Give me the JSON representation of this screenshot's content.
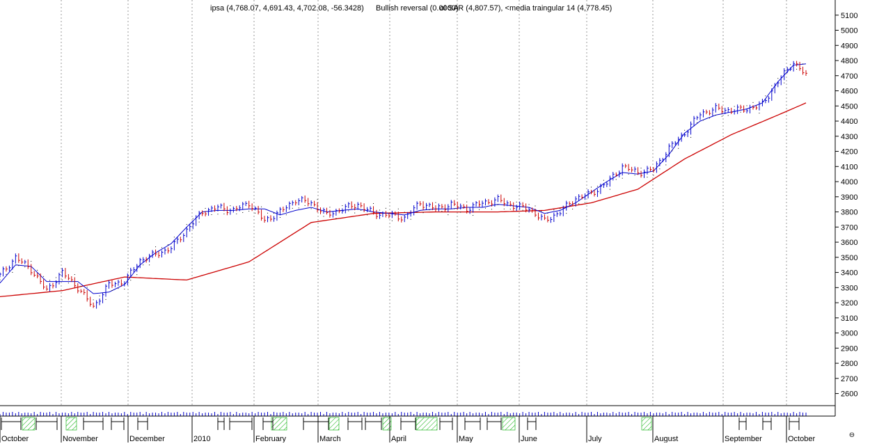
{
  "header": {
    "text_ipsa": "ipsa (4,768.07, 4,691.43, 4,702.08, -56.3428)",
    "text_overlay": "Bullish reversal (0.0000)",
    "text_sar": "ol SAR (4,807.57), <media traingular 14 (4,778.45)"
  },
  "zoom_glyph": "⊖",
  "colors": {
    "up_bar": "#0000cc",
    "down_bar": "#cc0000",
    "sma_line": "#0000cc",
    "long_ma_line": "#cc0000",
    "sar_dots": "#000000",
    "grid": "#999999",
    "volume_hatch": "#00aa00"
  },
  "chart_data": {
    "type": "line",
    "title": "ipsa",
    "ylim": [
      2520,
      5200
    ],
    "y_ticks": [
      2600,
      2700,
      2800,
      2900,
      3000,
      3100,
      3200,
      3300,
      3400,
      3500,
      3600,
      3700,
      3800,
      3900,
      4000,
      4100,
      4200,
      4300,
      4400,
      4500,
      4600,
      4700,
      4800,
      4900,
      5000,
      5100
    ],
    "x_months": [
      "October",
      "November",
      "December",
      "2010",
      "February",
      "March",
      "April",
      "May",
      "June",
      "July",
      "August",
      "September",
      "October"
    ],
    "grid": "vertical dotted at month boundaries",
    "series": [
      {
        "name": "ipsa",
        "style": "ohlc bars",
        "x": [
          0,
          5,
          10,
          15,
          20,
          25,
          30,
          35,
          40,
          45,
          50,
          55,
          60,
          65,
          70,
          75,
          80,
          85,
          90,
          95,
          100,
          105,
          110,
          115,
          120,
          125,
          130,
          135,
          140,
          145,
          150,
          155,
          160,
          165,
          170,
          175,
          180,
          185,
          190,
          195,
          200,
          205,
          210,
          215,
          220,
          225,
          230,
          235,
          240,
          245,
          250,
          255,
          259
        ],
        "values": [
          3380,
          3500,
          3420,
          3280,
          3400,
          3300,
          3170,
          3320,
          3340,
          3480,
          3520,
          3560,
          3680,
          3800,
          3830,
          3810,
          3860,
          3740,
          3800,
          3880,
          3860,
          3780,
          3820,
          3850,
          3790,
          3780,
          3760,
          3860,
          3820,
          3850,
          3820,
          3860,
          3880,
          3840,
          3820,
          3740,
          3800,
          3890,
          3920,
          3990,
          4100,
          4060,
          4080,
          4220,
          4320,
          4450,
          4480,
          4470,
          4480,
          4510,
          4660,
          4790,
          4702
        ]
      },
      {
        "name": "media traingular 14",
        "style": "line",
        "x": [
          0,
          5,
          10,
          15,
          20,
          25,
          30,
          35,
          40,
          45,
          50,
          55,
          60,
          65,
          70,
          75,
          80,
          85,
          90,
          95,
          100,
          105,
          110,
          115,
          120,
          125,
          130,
          135,
          140,
          145,
          150,
          155,
          160,
          165,
          170,
          175,
          180,
          185,
          190,
          195,
          200,
          205,
          210,
          215,
          220,
          225,
          230,
          235,
          240,
          245,
          250,
          255,
          259
        ],
        "values": [
          3330,
          3450,
          3440,
          3340,
          3340,
          3340,
          3260,
          3270,
          3320,
          3450,
          3530,
          3590,
          3700,
          3800,
          3810,
          3810,
          3820,
          3820,
          3780,
          3810,
          3830,
          3800,
          3810,
          3820,
          3800,
          3790,
          3780,
          3810,
          3820,
          3820,
          3830,
          3830,
          3850,
          3840,
          3830,
          3790,
          3810,
          3860,
          3930,
          4000,
          4060,
          4050,
          4070,
          4180,
          4320,
          4400,
          4440,
          4460,
          4480,
          4520,
          4660,
          4770,
          4778
        ]
      },
      {
        "style": "line",
        "x": [
          0,
          20,
          40,
          60,
          80,
          100,
          120,
          140,
          160,
          175,
          190,
          205,
          220,
          235,
          250,
          259
        ],
        "values": [
          3240,
          3280,
          3370,
          3350,
          3470,
          3730,
          3790,
          3800,
          3800,
          3810,
          3860,
          3950,
          4150,
          4310,
          4440,
          4520
        ]
      }
    ],
    "volume_axis": "bottom strip, unlabeled"
  }
}
